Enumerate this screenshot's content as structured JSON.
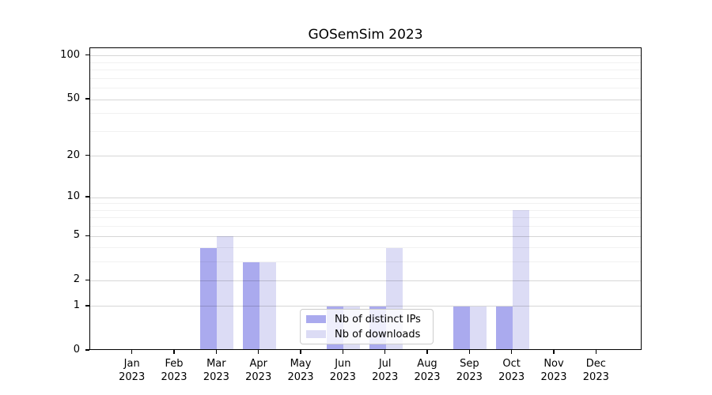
{
  "chart_data": {
    "type": "bar",
    "title": "GOSemSim 2023",
    "months": [
      "Jan",
      "Feb",
      "Mar",
      "Apr",
      "May",
      "Jun",
      "Jul",
      "Aug",
      "Sep",
      "Oct",
      "Nov",
      "Dec"
    ],
    "year": "2023",
    "series": [
      {
        "name": "Nb of distinct IPs",
        "color": "#aaaaee",
        "values": [
          0,
          0,
          4,
          3,
          0,
          1,
          1,
          0,
          1,
          1,
          0,
          0
        ]
      },
      {
        "name": "Nb of downloads",
        "color": "#dcdcf5",
        "values": [
          0,
          0,
          5,
          3,
          0,
          1,
          4,
          0,
          1,
          8,
          0,
          0
        ]
      }
    ],
    "yscale": "log1p",
    "ylim": [
      0,
      113
    ],
    "yticks": [
      0,
      1,
      2,
      5,
      10,
      20,
      50,
      100
    ],
    "minor_gridlines": [
      3,
      4,
      6,
      7,
      8,
      9,
      30,
      40,
      60,
      70,
      80,
      90
    ],
    "grid": true,
    "legend_position": "lower center"
  }
}
